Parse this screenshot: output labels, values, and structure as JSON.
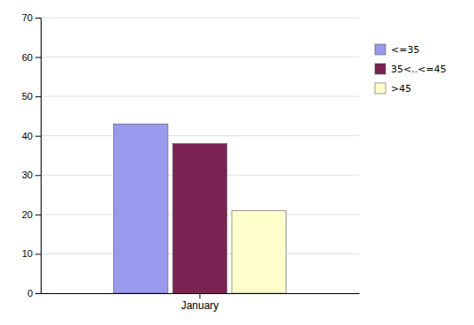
{
  "chart_data": {
    "type": "bar",
    "categories": [
      "January"
    ],
    "series": [
      {
        "name": "<=35",
        "color": "#9999EE",
        "values": [
          43
        ]
      },
      {
        "name": "35<..<=45",
        "color": "#7B2252",
        "values": [
          38
        ]
      },
      {
        "name": ">45",
        "color": "#FFFFCC",
        "values": [
          21
        ]
      }
    ],
    "ylim": [
      0,
      70
    ],
    "yticks": [
      0,
      10,
      20,
      30,
      40,
      50,
      60,
      70
    ],
    "grid": true,
    "legend": "right"
  }
}
